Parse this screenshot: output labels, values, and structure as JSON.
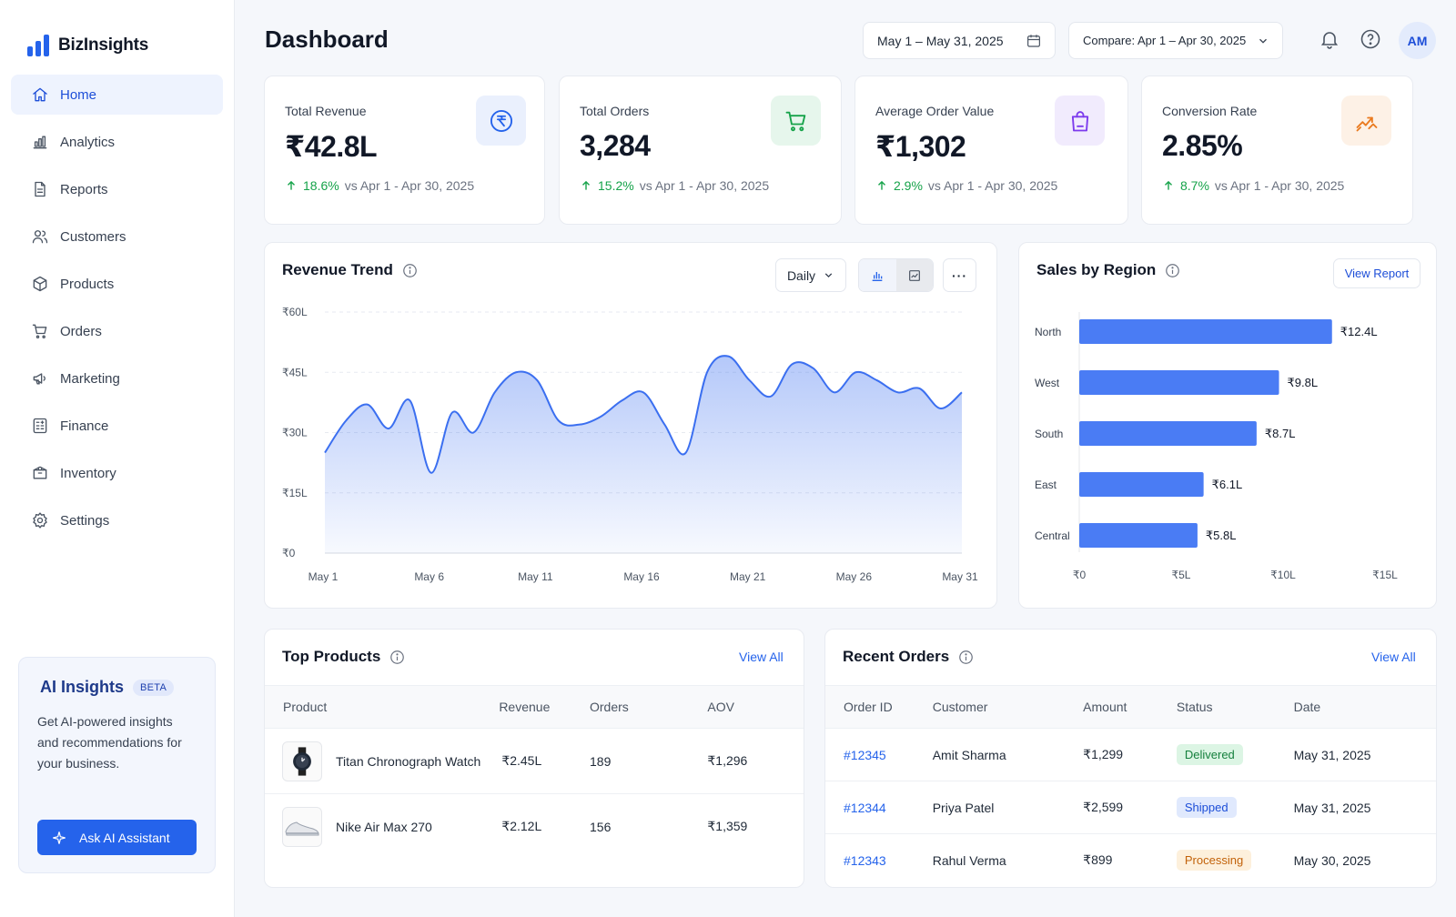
{
  "brand": {
    "name": "BizInsights",
    "color": "#2563eb"
  },
  "nav": [
    {
      "label": "Home",
      "icon": "home-icon",
      "active": true
    },
    {
      "label": "Analytics",
      "icon": "bar-chart-icon"
    },
    {
      "label": "Reports",
      "icon": "file-text-icon"
    },
    {
      "label": "Customers",
      "icon": "users-icon"
    },
    {
      "label": "Products",
      "icon": "box-icon"
    },
    {
      "label": "Orders",
      "icon": "cart-icon"
    },
    {
      "label": "Marketing",
      "icon": "megaphone-icon"
    },
    {
      "label": "Finance",
      "icon": "calculator-icon"
    },
    {
      "label": "Inventory",
      "icon": "package-icon"
    },
    {
      "label": "Settings",
      "icon": "gear-icon"
    }
  ],
  "ai": {
    "title": "AI Insights",
    "badge": "BETA",
    "description": "Get AI-powered insights and recommendations for your business.",
    "button": "Ask AI Assistant"
  },
  "header": {
    "title": "Dashboard",
    "date_range": "May 1 – May 31, 2025",
    "compare": "Compare: Apr 1 – Apr 30, 2025",
    "avatar": "AM"
  },
  "kpis": [
    {
      "label": "Total Revenue",
      "value": "₹42.8L",
      "change": "18.6%",
      "compare": "vs Apr 1 - Apr 30, 2025",
      "icon": "rupee-icon",
      "icon_color": "#2563eb",
      "bg": "#eaf0fd"
    },
    {
      "label": "Total Orders",
      "value": "3,284",
      "change": "15.2%",
      "compare": "vs Apr 1 - Apr 30, 2025",
      "icon": "cart-icon",
      "icon_color": "#16a34a",
      "bg": "#e6f6ec"
    },
    {
      "label": "Average Order Value",
      "value": "₹1,302",
      "change": "2.9%",
      "compare": "vs Apr 1 - Apr 30, 2025",
      "icon": "shopping-bag-icon",
      "icon_color": "#7c3aed",
      "bg": "#f1ebfd"
    },
    {
      "label": "Conversion Rate",
      "value": "2.85%",
      "change": "8.7%",
      "compare": "vs Apr 1 - Apr 30, 2025",
      "icon": "trend-up-icon",
      "icon_color": "#ea7a1f",
      "bg": "#fdf1e6"
    }
  ],
  "revenue_trend": {
    "title": "Revenue Trend",
    "granularity": "Daily",
    "more_label": "···"
  },
  "sales_by_region": {
    "title": "Sales by Region",
    "button": "View Report"
  },
  "top_products": {
    "title": "Top Products",
    "link": "View All",
    "columns": [
      "Product",
      "Revenue",
      "Orders",
      "AOV"
    ],
    "rows": [
      {
        "name": "Titan Chronograph Watch",
        "revenue": "₹2.45L",
        "orders": "189",
        "aov": "₹1,296",
        "thumb": "watch-icon"
      },
      {
        "name": "Nike Air Max 270",
        "revenue": "₹2.12L",
        "orders": "156",
        "aov": "₹1,359",
        "thumb": "shoe-icon"
      }
    ]
  },
  "recent_orders": {
    "title": "Recent Orders",
    "link": "View All",
    "columns": [
      "Order ID",
      "Customer",
      "Amount",
      "Status",
      "Date"
    ],
    "rows": [
      {
        "id": "#12345",
        "customer": "Amit Sharma",
        "amount": "₹1,299",
        "status": "Delivered",
        "date": "May 31, 2025",
        "status_color": "#15803d",
        "status_bg": "#dcf5e4"
      },
      {
        "id": "#12344",
        "customer": "Priya Patel",
        "amount": "₹2,599",
        "status": "Shipped",
        "date": "May 31, 2025",
        "status_color": "#1d4ed8",
        "status_bg": "#e0e9fd"
      },
      {
        "id": "#12343",
        "customer": "Rahul Verma",
        "amount": "₹899",
        "status": "Processing",
        "date": "May 30, 2025",
        "status_color": "#c2620a",
        "status_bg": "#fdf0dc"
      }
    ]
  },
  "chart_data": [
    {
      "type": "area",
      "title": "Revenue Trend",
      "x": [
        "May 1",
        "May 2",
        "May 3",
        "May 4",
        "May 5",
        "May 6",
        "May 7",
        "May 8",
        "May 9",
        "May 10",
        "May 11",
        "May 12",
        "May 13",
        "May 14",
        "May 15",
        "May 16",
        "May 17",
        "May 18",
        "May 19",
        "May 20",
        "May 21",
        "May 22",
        "May 23",
        "May 24",
        "May 25",
        "May 26",
        "May 27",
        "May 28",
        "May 29",
        "May 30",
        "May 31"
      ],
      "values": [
        25,
        33,
        37,
        31,
        38,
        20,
        35,
        30,
        40,
        45,
        43,
        33,
        32,
        34,
        38,
        40,
        32,
        25,
        45,
        49,
        43,
        39,
        47,
        46,
        40,
        45,
        43,
        40,
        41,
        36,
        40
      ],
      "unit": "₹L",
      "xticks": [
        "May 1",
        "May 6",
        "May 11",
        "May 16",
        "May 21",
        "May 26",
        "May 31"
      ],
      "yticks": [
        "₹0",
        "₹15L",
        "₹30L",
        "₹45L",
        "₹60L"
      ],
      "ylim": [
        0,
        60
      ],
      "grid": true,
      "color": "#3b6ff0"
    },
    {
      "type": "bar",
      "orientation": "horizontal",
      "title": "Sales by Region",
      "categories": [
        "North",
        "West",
        "South",
        "East",
        "Central"
      ],
      "values": [
        12.4,
        9.8,
        8.7,
        6.1,
        5.8
      ],
      "labels": [
        "₹12.4L",
        "₹9.8L",
        "₹8.7L",
        "₹6.1L",
        "₹5.8L"
      ],
      "xticks": [
        "₹0",
        "₹5L",
        "₹10L",
        "₹15L"
      ],
      "xlim": [
        0,
        15
      ],
      "color": "#4a7cf4"
    }
  ]
}
